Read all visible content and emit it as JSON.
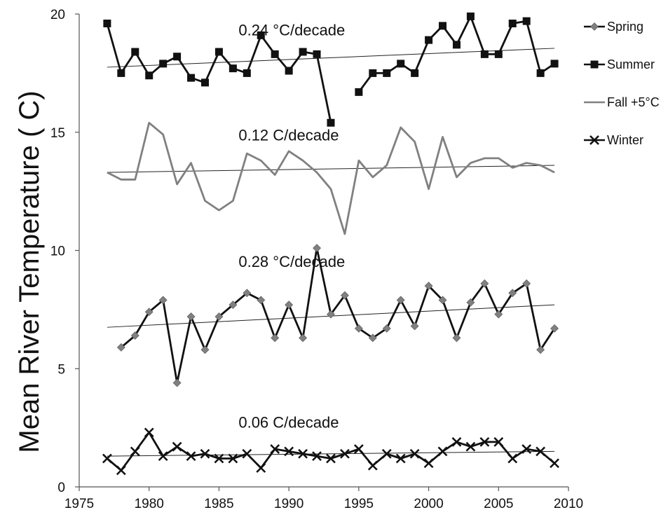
{
  "chart_data": {
    "type": "line",
    "ylabel": "Mean River Temperature ( C)",
    "xlim": [
      1975,
      2010
    ],
    "ylim": [
      0,
      20
    ],
    "x_ticks": [
      1975,
      1980,
      1985,
      1990,
      1995,
      2000,
      2005,
      2010
    ],
    "y_ticks": [
      0,
      5,
      10,
      15,
      20
    ],
    "legend_position": "right",
    "series": [
      {
        "name": "Spring",
        "marker": "diamond",
        "line_color": "#111111",
        "marker_color": "#808080",
        "x": [
          1978,
          1979,
          1980,
          1981,
          1982,
          1983,
          1984,
          1985,
          1986,
          1987,
          1988,
          1989,
          1990,
          1991,
          1992,
          1993,
          1994,
          1995,
          1996,
          1997,
          1998,
          1999,
          2000,
          2001,
          2002,
          2003,
          2004,
          2005,
          2006,
          2007,
          2008,
          2009
        ],
        "values": [
          5.9,
          6.4,
          7.4,
          7.9,
          4.4,
          7.2,
          5.8,
          7.2,
          7.7,
          8.2,
          7.9,
          6.3,
          7.7,
          6.3,
          10.1,
          7.3,
          8.1,
          6.7,
          6.3,
          6.7,
          7.9,
          6.8,
          8.5,
          7.9,
          6.3,
          7.8,
          8.6,
          7.3,
          8.2,
          8.6,
          5.8,
          6.7
        ],
        "trend": {
          "x": [
            1977,
            2009
          ],
          "y": [
            6.75,
            7.7
          ]
        }
      },
      {
        "name": "Summer",
        "marker": "square",
        "line_color": "#111111",
        "marker_color": "#111111",
        "x": [
          1977,
          1978,
          1979,
          1980,
          1981,
          1982,
          1983,
          1984,
          1985,
          1986,
          1987,
          1988,
          1989,
          1990,
          1991,
          1992,
          1993,
          null,
          1995,
          1996,
          1997,
          1998,
          1999,
          2000,
          2001,
          2002,
          2003,
          2004,
          2005,
          2006,
          2007,
          2008,
          2009
        ],
        "values": [
          19.6,
          17.5,
          18.4,
          17.4,
          17.9,
          18.2,
          17.3,
          17.1,
          18.4,
          17.7,
          17.5,
          19.1,
          18.3,
          17.6,
          18.4,
          18.3,
          15.4,
          null,
          16.7,
          17.5,
          17.5,
          17.9,
          17.5,
          18.9,
          19.5,
          18.7,
          19.9,
          18.3,
          18.3,
          19.6,
          19.7,
          17.5,
          17.9
        ],
        "trend": {
          "x": [
            1977,
            2009
          ],
          "y": [
            17.75,
            18.55
          ]
        }
      },
      {
        "name": "Fall +5°C",
        "marker": "none",
        "line_color": "#808080",
        "marker_color": "#808080",
        "x": [
          1977,
          1978,
          1979,
          1980,
          1981,
          1982,
          1983,
          1984,
          1985,
          1986,
          1987,
          1988,
          1989,
          1990,
          1991,
          1992,
          1993,
          1994,
          1995,
          1996,
          1997,
          1998,
          1999,
          2000,
          2001,
          2002,
          2003,
          2004,
          2005,
          2006,
          2007,
          2008,
          2009
        ],
        "values": [
          13.3,
          13.0,
          13.0,
          15.4,
          14.9,
          12.8,
          13.7,
          12.1,
          11.7,
          12.1,
          14.1,
          13.8,
          13.2,
          14.2,
          13.8,
          13.3,
          12.6,
          10.7,
          13.8,
          13.1,
          13.6,
          15.2,
          14.6,
          12.6,
          14.8,
          13.1,
          13.7,
          13.9,
          13.9,
          13.5,
          13.7,
          13.6,
          13.3
        ],
        "trend": {
          "x": [
            1977,
            2009
          ],
          "y": [
            13.3,
            13.6
          ]
        }
      },
      {
        "name": "Winter",
        "marker": "x",
        "line_color": "#111111",
        "marker_color": "#111111",
        "x": [
          1977,
          1978,
          1979,
          1980,
          1981,
          1982,
          1983,
          1984,
          1985,
          1986,
          1987,
          1988,
          1989,
          1990,
          1991,
          1992,
          1993,
          1994,
          1995,
          1996,
          1997,
          1998,
          1999,
          2000,
          2001,
          2002,
          2003,
          2004,
          2005,
          2006,
          2007,
          2008,
          2009
        ],
        "values": [
          1.2,
          0.7,
          1.5,
          2.3,
          1.3,
          1.7,
          1.3,
          1.4,
          1.2,
          1.2,
          1.4,
          0.8,
          1.6,
          1.5,
          1.4,
          1.3,
          1.2,
          1.4,
          1.6,
          0.9,
          1.4,
          1.2,
          1.4,
          1.0,
          1.5,
          1.9,
          1.7,
          1.9,
          1.9,
          1.2,
          1.6,
          1.5,
          1.0
        ],
        "trend": {
          "x": [
            1977,
            2009
          ],
          "y": [
            1.3,
            1.5
          ]
        }
      }
    ],
    "annotations": [
      {
        "text": "0.24 °C/decade",
        "x": 1986.4,
        "y": 19.1
      },
      {
        "text": "0.12  C/decade",
        "x": 1986.4,
        "y": 14.65
      },
      {
        "text": "0.28 °C/decade",
        "x": 1986.4,
        "y": 9.3
      },
      {
        "text": "0.06  C/decade",
        "x": 1986.4,
        "y": 2.5
      }
    ]
  }
}
